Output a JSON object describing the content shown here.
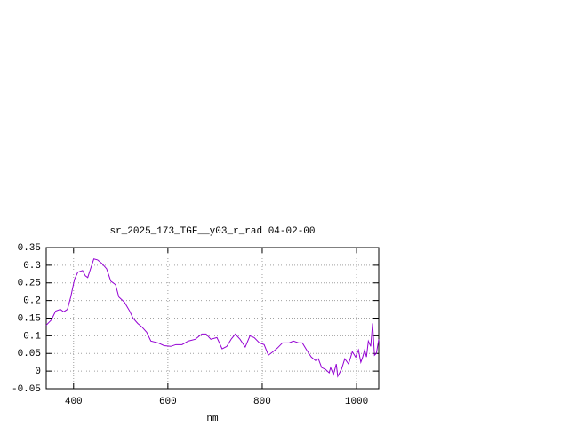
{
  "chart_data": {
    "type": "line",
    "title": "sr_2025_173_TGF__y03_r_rad 04-02-00",
    "xlabel": "nm",
    "x": [
      342,
      353,
      362,
      372,
      379,
      387,
      394,
      402,
      409,
      419,
      425,
      430,
      436,
      443,
      451,
      460,
      470,
      479,
      489,
      496,
      508,
      519,
      526,
      536,
      545,
      555,
      564,
      579,
      592,
      606,
      617,
      630,
      643,
      658,
      672,
      681,
      691,
      704,
      715,
      725,
      734,
      743,
      753,
      764,
      774,
      783,
      794,
      804,
      813,
      823,
      832,
      843,
      857,
      866,
      877,
      885,
      894,
      904,
      913,
      919,
      926,
      934,
      942,
      945,
      951,
      957,
      960,
      968,
      975,
      983,
      991,
      998,
      1004,
      1009,
      1013,
      1017,
      1021,
      1025,
      1030,
      1034,
      1038,
      1042,
      1047
    ],
    "series": [
      {
        "color": "#9400d3",
        "values": [
          0.13,
          0.145,
          0.17,
          0.175,
          0.168,
          0.175,
          0.21,
          0.26,
          0.28,
          0.285,
          0.27,
          0.265,
          0.29,
          0.318,
          0.315,
          0.305,
          0.29,
          0.255,
          0.245,
          0.21,
          0.195,
          0.17,
          0.15,
          0.135,
          0.125,
          0.11,
          0.085,
          0.08,
          0.072,
          0.07,
          0.075,
          0.075,
          0.085,
          0.09,
          0.105,
          0.105,
          0.09,
          0.095,
          0.063,
          0.07,
          0.09,
          0.105,
          0.09,
          0.068,
          0.1,
          0.095,
          0.08,
          0.075,
          0.045,
          0.055,
          0.065,
          0.08,
          0.08,
          0.085,
          0.08,
          0.08,
          0.06,
          0.04,
          0.03,
          0.035,
          0.01,
          0.005,
          -0.005,
          0.01,
          -0.01,
          0.02,
          -0.015,
          0.005,
          0.035,
          0.02,
          0.055,
          0.04,
          0.06,
          0.025,
          0.04,
          0.06,
          0.04,
          0.085,
          0.07,
          0.135,
          0.045,
          0.05,
          0.09
        ]
      }
    ],
    "xlim": [
      342,
      1047
    ],
    "ylim": [
      -0.05,
      0.35
    ],
    "xticks": [
      400,
      600,
      800,
      1000
    ],
    "yticks": [
      0.35,
      0.3,
      0.25,
      0.2,
      0.15,
      0.1,
      0.05,
      0,
      -0.05
    ],
    "grid": true
  }
}
